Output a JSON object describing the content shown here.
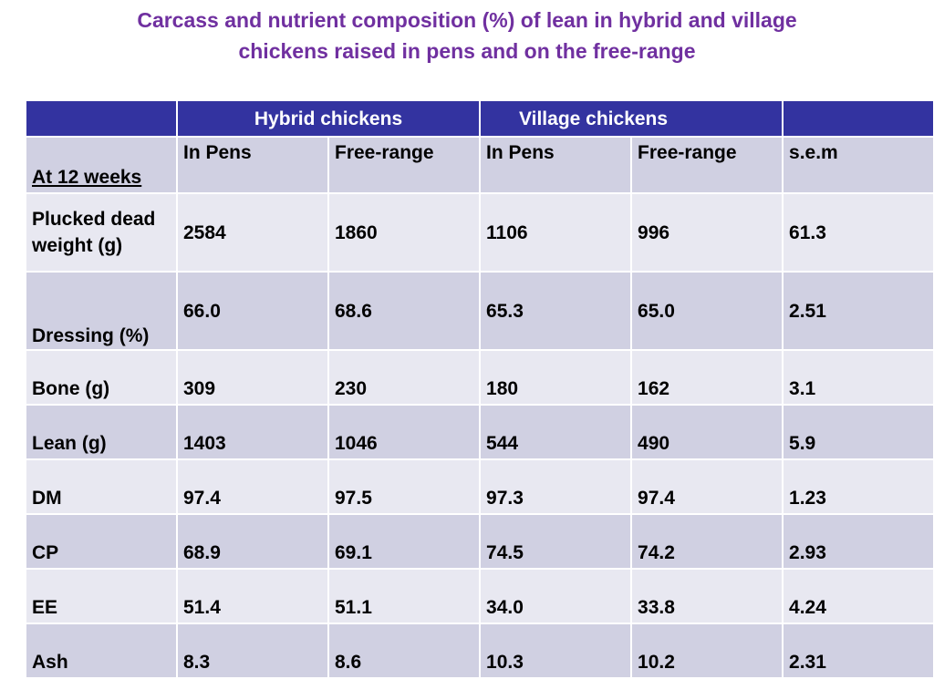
{
  "title_line1": "Carcass and nutrient composition (%) of lean in hybrid and village",
  "title_line2": "chickens raised in pens and on the free-range",
  "header": {
    "empty": "",
    "hybrid": "Hybrid chickens",
    "village": "Village chickens",
    "empty_end": ""
  },
  "subheader": {
    "age": "At 12 weeks",
    "cols": [
      "In Pens",
      "Free-range",
      "In Pens",
      "Free-range",
      "s.e.m"
    ]
  },
  "rows": [
    {
      "label": "Plucked dead weight (g)",
      "values": [
        "2584",
        "1860",
        "1106",
        "996",
        "61.3"
      ]
    },
    {
      "label": "Dressing (%)",
      "values": [
        "66.0",
        "68.6",
        "65.3",
        "65.0",
        "2.51"
      ]
    },
    {
      "label": "Bone (g)",
      "values": [
        "309",
        "230",
        "180",
        "162",
        "3.1"
      ]
    },
    {
      "label": "Lean (g)",
      "values": [
        "1403",
        "1046",
        "544",
        "490",
        "5.9"
      ]
    },
    {
      "label": "DM",
      "values": [
        "97.4",
        "97.5",
        "97.3",
        "97.4",
        "1.23"
      ]
    },
    {
      "label": "CP",
      "values": [
        "68.9",
        "69.1",
        "74.5",
        "74.2",
        "2.93"
      ]
    },
    {
      "label": "EE",
      "values": [
        "51.4",
        "51.1",
        "34.0",
        "33.8",
        "4.24"
      ]
    },
    {
      "label": "Ash",
      "values": [
        "8.3",
        "8.6",
        "10.3",
        "10.2",
        "2.31"
      ]
    }
  ],
  "colors": {
    "title": "#7030a0",
    "header_bg": "#3333a0",
    "row_dark": "#d0d0e2",
    "row_light": "#e8e8f1"
  }
}
